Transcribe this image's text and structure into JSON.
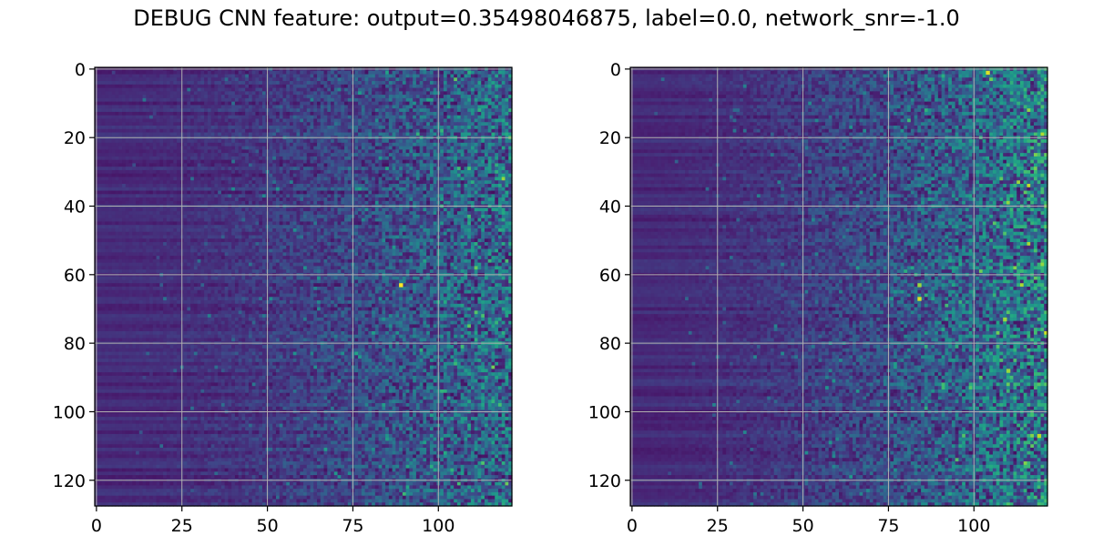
{
  "figure": {
    "title": "DEBUG CNN feature: output=0.35498046875, label=0.0, network_snr=-1.0"
  },
  "chart_data": [
    {
      "type": "heatmap",
      "title": "",
      "xlabel": "",
      "ylabel": "",
      "colormap": "viridis",
      "rows": 128,
      "cols": 122,
      "xlim": [
        -0.5,
        121.5
      ],
      "ylim": [
        127.5,
        -0.5
      ],
      "y_inverted": true,
      "grid": true,
      "x_ticks": [
        0,
        25,
        50,
        75,
        100
      ],
      "x_tick_labels": [
        "0",
        "25",
        "50",
        "75",
        "100"
      ],
      "y_ticks": [
        0,
        20,
        40,
        60,
        80,
        100,
        120
      ],
      "y_tick_labels": [
        "0",
        "20",
        "40",
        "60",
        "80",
        "100",
        "120"
      ],
      "value_range": [
        0,
        1
      ],
      "bright_spots": [
        {
          "x": 89,
          "y": 63,
          "value": 1.0
        }
      ]
    },
    {
      "type": "heatmap",
      "title": "",
      "xlabel": "",
      "ylabel": "",
      "colormap": "viridis",
      "rows": 128,
      "cols": 122,
      "xlim": [
        -0.5,
        121.5
      ],
      "ylim": [
        127.5,
        -0.5
      ],
      "y_inverted": true,
      "grid": true,
      "x_ticks": [
        0,
        25,
        50,
        75,
        100
      ],
      "x_tick_labels": [
        "0",
        "25",
        "50",
        "75",
        "100"
      ],
      "y_ticks": [
        0,
        20,
        40,
        60,
        80,
        100,
        120
      ],
      "y_tick_labels": [
        "0",
        "20",
        "40",
        "60",
        "80",
        "100",
        "120"
      ],
      "value_range": [
        0,
        1
      ],
      "bright_spots": [
        {
          "x": 104,
          "y": 1,
          "value": 0.95
        },
        {
          "x": 84,
          "y": 67,
          "value": 0.95
        },
        {
          "x": 84,
          "y": 63,
          "value": 0.85
        },
        {
          "x": 109,
          "y": 73,
          "value": 0.85
        },
        {
          "x": 119,
          "y": 107,
          "value": 0.9
        },
        {
          "x": 110,
          "y": 88,
          "value": 0.85
        }
      ]
    }
  ]
}
